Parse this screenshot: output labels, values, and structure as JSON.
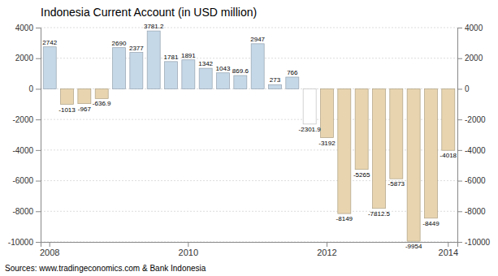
{
  "chart_data": {
    "type": "bar",
    "title": "Indonesia Current Account (in USD million)",
    "annotations": [
      "Sources: www.tradingeconomics.com & Bank Indonesia"
    ],
    "categories": [
      "2008",
      null,
      null,
      null,
      null,
      null,
      null,
      null,
      "2010",
      null,
      null,
      null,
      null,
      null,
      null,
      null,
      "2012",
      null,
      null,
      null,
      null,
      null,
      null,
      "2014"
    ],
    "values": [
      2742,
      -1013,
      -967,
      -636.9,
      2690,
      2377,
      3781.2,
      1781,
      1891,
      1342,
      1043,
      869.6,
      2947,
      273,
      766,
      -2301.9,
      -3192,
      -8149,
      -5265,
      -7812.5,
      -5873,
      -9954,
      -8449,
      -4018
    ],
    "colors": [
      "#c5d8e8",
      "#e8d5b0",
      "#e8d5b0",
      "#e8d5b0",
      "#c5d8e8",
      "#c5d8e8",
      "#c5d8e8",
      "#c5d8e8",
      "#c5d8e8",
      "#c5d8e8",
      "#c5d8e8",
      "#c5d8e8",
      "#c5d8e8",
      "#c5d8e8",
      "#c5d8e8",
      "#ffffff",
      "#e8d5b0",
      "#e8d5b0",
      "#e8d5b0",
      "#e8d5b0",
      "#e8d5b0",
      "#e8d5b0",
      "#e8d5b0",
      "#e8d5b0"
    ],
    "ylim": [
      -10000,
      4000
    ],
    "yticks": [
      -10000,
      -8000,
      -6000,
      -4000,
      -2000,
      0,
      2000,
      4000
    ],
    "y2lim": [
      -10000,
      4000
    ],
    "y2ticks": [
      -10000,
      -8000,
      -6000,
      -4000,
      -2000,
      0,
      2000,
      4000
    ],
    "grid": true,
    "data_labels": true
  }
}
